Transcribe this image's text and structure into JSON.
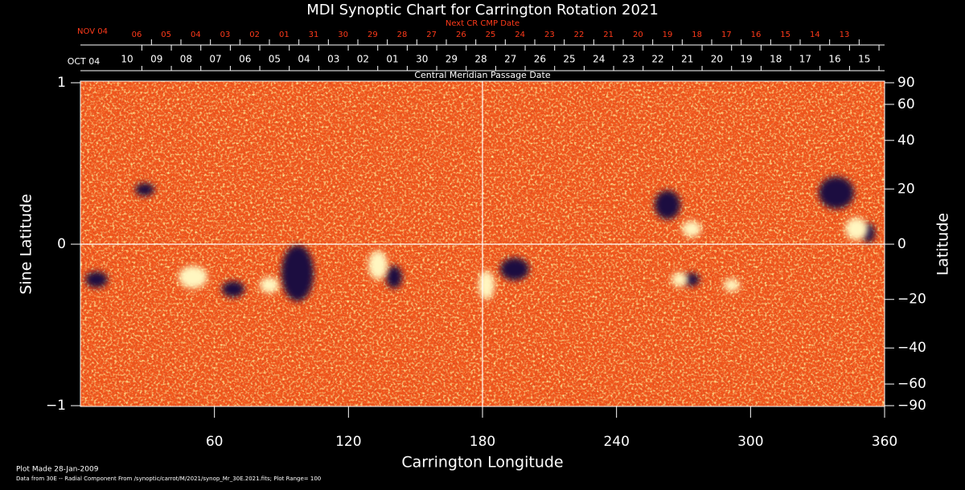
{
  "chart_data": {
    "type": "heatmap",
    "title": "MDI Synoptic Chart for Carrington Rotation 2021",
    "xlabel": "Carrington Longitude",
    "ylabel": "Sine Latitude",
    "y2label": "Latitude",
    "x2label": "Central Meridian Passage Date",
    "x3label": "Next CR CMP Date",
    "x2start_label": "OCT 04",
    "x3start_label": "NOV 04",
    "xlim": [
      0,
      360
    ],
    "xticks": [
      60,
      120,
      180,
      240,
      300,
      360
    ],
    "ylim": [
      -1,
      1
    ],
    "yticks": [
      {
        "value": -1,
        "label": "−1"
      },
      0,
      1
    ],
    "y2lim": [
      -90,
      90
    ],
    "y2scale": "sine",
    "y2ticks": [
      {
        "value": -90,
        "label": "−90"
      },
      {
        "value": -60,
        "label": "−60"
      },
      {
        "value": -40,
        "label": "−40"
      },
      {
        "value": -20,
        "label": "−20"
      },
      0,
      20,
      40,
      60,
      90
    ],
    "x2ticks": [
      {
        "value": 27.5,
        "label": "10"
      },
      {
        "value": 40.7,
        "label": "09"
      },
      {
        "value": 53.9,
        "label": "08"
      },
      {
        "value": 67.1,
        "label": "07"
      },
      {
        "value": 80.3,
        "label": "06"
      },
      {
        "value": 93.5,
        "label": "05"
      },
      {
        "value": 106.7,
        "label": "04"
      },
      {
        "value": 119.9,
        "label": "03"
      },
      {
        "value": 133.1,
        "label": "02"
      },
      {
        "value": 146.3,
        "label": "01"
      },
      {
        "value": 159.5,
        "label": "30"
      },
      {
        "value": 172.7,
        "label": "29"
      },
      {
        "value": 185.9,
        "label": "28"
      },
      {
        "value": 199.1,
        "label": "27"
      },
      {
        "value": 212.3,
        "label": "26"
      },
      {
        "value": 225.5,
        "label": "25"
      },
      {
        "value": 238.7,
        "label": "24"
      },
      {
        "value": 251.9,
        "label": "23"
      },
      {
        "value": 265.1,
        "label": "22"
      },
      {
        "value": 278.3,
        "label": "21"
      },
      {
        "value": 291.5,
        "label": "20"
      },
      {
        "value": 304.7,
        "label": "19"
      },
      {
        "value": 317.9,
        "label": "18"
      },
      {
        "value": 331.1,
        "label": "17"
      },
      {
        "value": 344.3,
        "label": "16"
      },
      {
        "value": 357.5,
        "label": "15"
      }
    ],
    "x3ticks": [
      {
        "value": 31.8,
        "label": "06"
      },
      {
        "value": 45.0,
        "label": "05"
      },
      {
        "value": 58.2,
        "label": "04"
      },
      {
        "value": 71.4,
        "label": "03"
      },
      {
        "value": 84.6,
        "label": "02"
      },
      {
        "value": 97.8,
        "label": "01"
      },
      {
        "value": 111.0,
        "label": "31"
      },
      {
        "value": 124.2,
        "label": "30"
      },
      {
        "value": 137.4,
        "label": "29"
      },
      {
        "value": 150.6,
        "label": "28"
      },
      {
        "value": 163.8,
        "label": "27"
      },
      {
        "value": 177.0,
        "label": "26"
      },
      {
        "value": 190.2,
        "label": "25"
      },
      {
        "value": 203.4,
        "label": "24"
      },
      {
        "value": 216.6,
        "label": "23"
      },
      {
        "value": 229.8,
        "label": "22"
      },
      {
        "value": 243.0,
        "label": "21"
      },
      {
        "value": 256.2,
        "label": "20"
      },
      {
        "value": 269.4,
        "label": "19"
      },
      {
        "value": 282.6,
        "label": "18"
      },
      {
        "value": 295.8,
        "label": "17"
      },
      {
        "value": 309.0,
        "label": "16"
      },
      {
        "value": 322.2,
        "label": "15"
      },
      {
        "value": 335.4,
        "label": "14"
      },
      {
        "value": 348.6,
        "label": "13"
      }
    ],
    "reference_lines": {
      "x": 180,
      "y": 0
    },
    "notes": [
      "Plot Made 28-Jan-2009",
      "Data from 30E -- Radial Component From /synoptic/carrot/M/2021/synop_Mr_30E.2021.fits; Plot Range=  100"
    ]
  }
}
